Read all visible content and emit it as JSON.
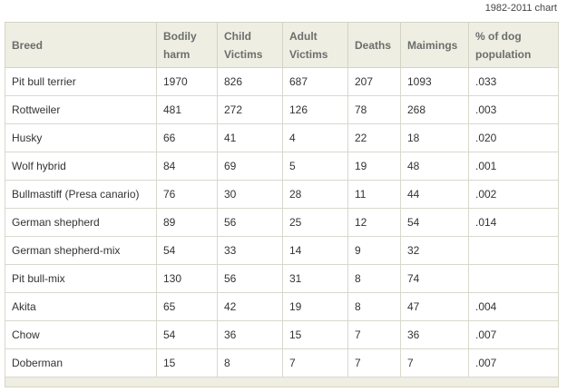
{
  "caption": "1982-2011 chart",
  "table": {
    "headers": [
      "Breed",
      "Bodily harm",
      "Child Victims",
      "Adult Victims",
      "Deaths",
      "Maimings",
      "% of dog population"
    ],
    "rows": [
      [
        "Pit bull terrier",
        "1970",
        "826",
        "687",
        "207",
        "1093",
        ".033"
      ],
      [
        "Rottweiler",
        "481",
        "272",
        "126",
        "78",
        "268",
        ".003"
      ],
      [
        "Husky",
        "66",
        "41",
        "4",
        "22",
        "18",
        ".020"
      ],
      [
        "Wolf hybrid",
        "84",
        "69",
        "5",
        "19",
        "48",
        ".001"
      ],
      [
        "Bullmastiff (Presa canario)",
        "76",
        "30",
        "28",
        "11",
        "44",
        ".002"
      ],
      [
        "German shepherd",
        "89",
        "56",
        "25",
        "12",
        "54",
        ".014"
      ],
      [
        "German shepherd-mix",
        "54",
        "33",
        "14",
        "9",
        "32",
        ""
      ],
      [
        "Pit bull-mix",
        "130",
        "56",
        "31",
        "8",
        "74",
        ""
      ],
      [
        "Akita",
        "65",
        "42",
        "19",
        "8",
        "47",
        ".004"
      ],
      [
        "Chow",
        "54",
        "36",
        "15",
        "7",
        "36",
        ".007"
      ],
      [
        "Doberman",
        "15",
        "8",
        "7",
        "7",
        "7",
        ".007"
      ]
    ]
  }
}
